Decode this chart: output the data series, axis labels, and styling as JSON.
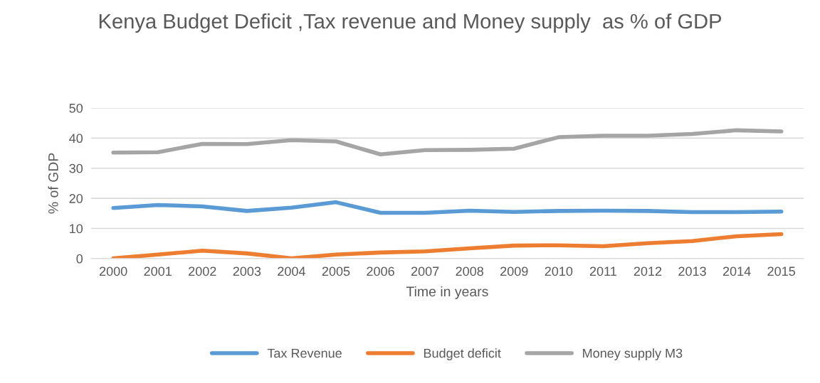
{
  "chart_data": {
    "type": "line",
    "title": "Kenya Budget Deficit ,Tax revenue and Money supply  as % of GDP",
    "xlabel": "Time in years",
    "ylabel": "% of GDP",
    "categories": [
      "2000",
      "2001",
      "2002",
      "2003",
      "2004",
      "2005",
      "2006",
      "2007",
      "2008",
      "2009",
      "2010",
      "2011",
      "2012",
      "2013",
      "2014",
      "2015"
    ],
    "series": [
      {
        "name": "Tax Revenue",
        "color": "#5b9bd5",
        "values": [
          16.8,
          17.8,
          17.3,
          15.8,
          16.9,
          18.7,
          15.2,
          15.2,
          15.9,
          15.5,
          15.8,
          15.9,
          15.8,
          15.4,
          15.4,
          15.6
        ]
      },
      {
        "name": "Budget deficit",
        "color": "#ed7d31",
        "values": [
          0.1,
          1.3,
          2.6,
          1.7,
          0.1,
          1.3,
          2.0,
          2.4,
          3.4,
          4.3,
          4.4,
          4.1,
          5.1,
          5.8,
          7.4,
          8.1
        ]
      },
      {
        "name": "Money supply M3",
        "color": "#a5a5a5",
        "values": [
          35.2,
          35.3,
          38.1,
          38.0,
          39.3,
          38.9,
          34.6,
          36.0,
          36.1,
          36.5,
          40.3,
          40.8,
          40.8,
          41.4,
          42.6,
          42.2
        ]
      }
    ],
    "ylim": [
      0,
      50
    ],
    "yticks": [
      0,
      10,
      20,
      30,
      40,
      50
    ],
    "grid": "y",
    "legend": "bottom",
    "marker": "none",
    "line_style": "solid"
  }
}
